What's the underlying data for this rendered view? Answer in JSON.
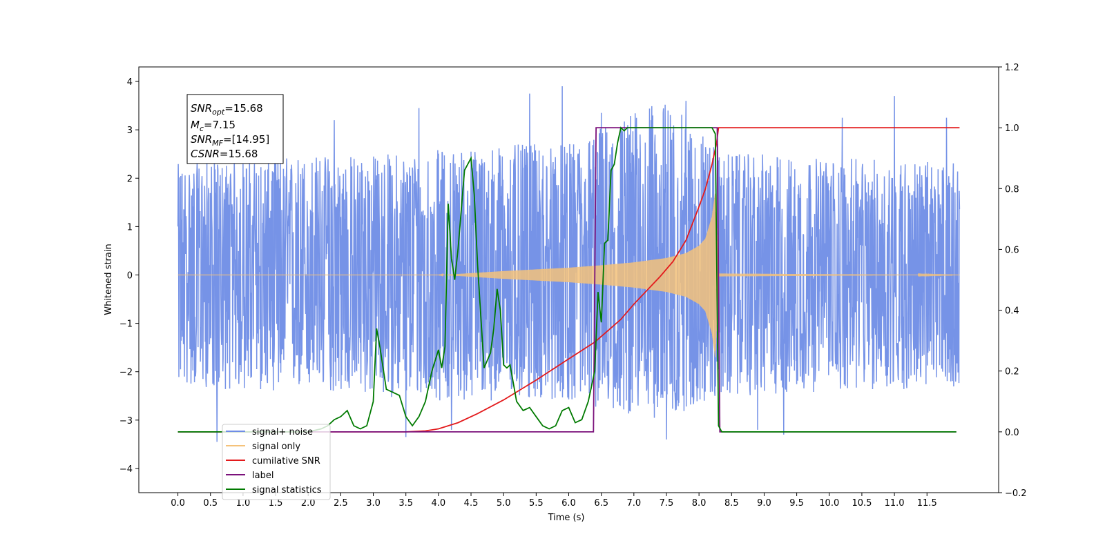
{
  "chart_data": {
    "type": "line",
    "xlabel": "Time (s)",
    "ylabel": "Whitened strain",
    "xlim": [
      -0.6,
      12.6
    ],
    "ylim": [
      -4.5,
      4.3
    ],
    "y2lim": [
      -0.2,
      1.2
    ],
    "x_ticks": [
      0.0,
      0.5,
      1.0,
      1.5,
      2.0,
      2.5,
      3.0,
      3.5,
      4.0,
      4.5,
      5.0,
      5.5,
      6.0,
      6.5,
      7.0,
      7.5,
      8.0,
      8.5,
      9.0,
      9.5,
      10.0,
      10.5,
      11.0,
      11.5
    ],
    "x_tick_labels": [
      "0.0",
      "0.5",
      "1.0",
      "1.5",
      "2.0",
      "2.5",
      "3.0",
      "3.5",
      "4.0",
      "4.5",
      "5.0",
      "5.5",
      "6.0",
      "6.5",
      "7.0",
      "7.5",
      "8.0",
      "8.5",
      "9.0",
      "9.5",
      "10.0",
      "10.5",
      "11.0",
      "11.5"
    ],
    "y_ticks": [
      4,
      3,
      2,
      1,
      0,
      -1,
      -2,
      -3,
      -4
    ],
    "y_tick_labels": [
      "4",
      "3",
      "2",
      "1",
      "0",
      "−1",
      "−2",
      "−3",
      "−4"
    ],
    "y2_ticks": [
      1.2,
      1.0,
      0.8,
      0.6,
      0.4,
      0.2,
      0.0,
      -0.2
    ],
    "y2_tick_labels": [
      "1.2",
      "1.0",
      "0.8",
      "0.6",
      "0.4",
      "0.2",
      "0.0",
      "−0.2"
    ],
    "noise_envelope": {
      "x": [
        0.0,
        1.0,
        2.0,
        3.0,
        4.0,
        5.0,
        6.0,
        6.5,
        7.0,
        7.5,
        8.0,
        8.5,
        9.0,
        10.0,
        11.0,
        12.0
      ],
      "max": [
        2.3,
        2.4,
        2.5,
        2.5,
        2.6,
        2.7,
        2.7,
        3.1,
        3.4,
        3.6,
        3.0,
        2.5,
        2.5,
        2.4,
        2.4,
        2.3
      ],
      "min": [
        -2.3,
        -2.4,
        -2.4,
        -2.5,
        -2.6,
        -2.6,
        -2.6,
        -2.8,
        -2.9,
        -3.0,
        -2.7,
        -2.5,
        -2.5,
        -2.4,
        -2.4,
        -2.3
      ]
    },
    "noise_spikes": [
      {
        "x": 0.6,
        "y": -3.45
      },
      {
        "x": 1.5,
        "y": 3.1
      },
      {
        "x": 2.4,
        "y": 3.2
      },
      {
        "x": 3.5,
        "y": -3.35
      },
      {
        "x": 3.7,
        "y": 3.45
      },
      {
        "x": 4.2,
        "y": -3.2
      },
      {
        "x": 5.4,
        "y": 3.75
      },
      {
        "x": 5.9,
        "y": 3.9
      },
      {
        "x": 6.5,
        "y": 3.35
      },
      {
        "x": 7.5,
        "y": -3.4
      },
      {
        "x": 7.8,
        "y": 3.6
      },
      {
        "x": 8.9,
        "y": -3.2
      },
      {
        "x": 9.3,
        "y": -3.3
      },
      {
        "x": 10.2,
        "y": 3.25
      },
      {
        "x": 11.0,
        "y": 3.7
      },
      {
        "x": 11.8,
        "y": 3.25
      }
    ],
    "signal_envelope": {
      "x": [
        0.0,
        4.0,
        4.3,
        5.0,
        6.0,
        6.5,
        7.0,
        7.5,
        7.8,
        8.0,
        8.1,
        8.2,
        8.25,
        8.3,
        12.0
      ],
      "amplitude": [
        0.0,
        0.0,
        0.02,
        0.08,
        0.15,
        0.2,
        0.26,
        0.35,
        0.45,
        0.6,
        0.75,
        1.2,
        1.7,
        0.03,
        0.0
      ]
    },
    "series": [
      {
        "name": "cumilative SNR",
        "axis": "right",
        "color": "#e31a1c",
        "x": [
          0.0,
          3.5,
          3.8,
          4.0,
          4.3,
          4.6,
          5.0,
          5.5,
          6.0,
          6.4,
          6.8,
          7.0,
          7.4,
          7.6,
          7.8,
          8.0,
          8.1,
          8.2,
          8.27,
          8.3,
          12.0
        ],
        "y": [
          0.0,
          0.0,
          0.003,
          0.01,
          0.03,
          0.06,
          0.105,
          0.17,
          0.24,
          0.295,
          0.37,
          0.42,
          0.51,
          0.56,
          0.63,
          0.74,
          0.8,
          0.88,
          0.95,
          1.0,
          1.0
        ]
      },
      {
        "name": "label",
        "axis": "right",
        "color": "#7b117b",
        "x": [
          0.0,
          6.38,
          6.42,
          8.28,
          8.32,
          11.95
        ],
        "y": [
          0.0,
          0.0,
          1.0,
          1.0,
          0.0,
          0.0
        ]
      },
      {
        "name": "signal statistics",
        "axis": "right",
        "color": "#007a00",
        "x": [
          0.0,
          2.0,
          2.2,
          2.3,
          2.4,
          2.5,
          2.6,
          2.7,
          2.8,
          2.9,
          3.0,
          3.05,
          3.1,
          3.2,
          3.3,
          3.4,
          3.5,
          3.6,
          3.7,
          3.8,
          3.9,
          4.0,
          4.05,
          4.1,
          4.15,
          4.2,
          4.25,
          4.3,
          4.4,
          4.5,
          4.55,
          4.6,
          4.7,
          4.8,
          4.85,
          4.9,
          4.95,
          5.0,
          5.05,
          5.1,
          5.2,
          5.3,
          5.4,
          5.5,
          5.6,
          5.7,
          5.8,
          5.9,
          6.0,
          6.1,
          6.2,
          6.3,
          6.4,
          6.45,
          6.5,
          6.55,
          6.6,
          6.65,
          6.7,
          6.75,
          6.8,
          6.85,
          6.9,
          7.0,
          7.1,
          7.3,
          7.6,
          8.0,
          8.2,
          8.25,
          8.3,
          8.35,
          11.95
        ],
        "y": [
          0.0,
          0.0,
          0.01,
          0.02,
          0.04,
          0.05,
          0.07,
          0.02,
          0.01,
          0.02,
          0.1,
          0.34,
          0.28,
          0.14,
          0.13,
          0.12,
          0.05,
          0.02,
          0.05,
          0.1,
          0.2,
          0.27,
          0.21,
          0.28,
          0.75,
          0.57,
          0.5,
          0.6,
          0.86,
          0.9,
          0.78,
          0.55,
          0.21,
          0.26,
          0.34,
          0.47,
          0.4,
          0.22,
          0.21,
          0.22,
          0.1,
          0.07,
          0.08,
          0.05,
          0.02,
          0.01,
          0.02,
          0.07,
          0.08,
          0.03,
          0.04,
          0.1,
          0.2,
          0.46,
          0.36,
          0.62,
          0.63,
          0.86,
          0.88,
          0.95,
          1.0,
          0.99,
          1.0,
          1.0,
          1.0,
          1.0,
          1.0,
          1.0,
          1.0,
          0.98,
          0.02,
          0.0,
          0.0
        ]
      }
    ],
    "legend": {
      "placement": "lower-left",
      "entries": [
        {
          "label": "signal+ noise",
          "color": "#6f8de6"
        },
        {
          "label": "signal only",
          "color": "#f5c27a"
        },
        {
          "label": "cumilative SNR",
          "color": "#e31a1c"
        },
        {
          "label": "label",
          "color": "#7b117b"
        },
        {
          "label": "signal statistics",
          "color": "#007a00"
        }
      ]
    },
    "annotation": {
      "snr_opt_value": "=15.68",
      "mc_value": "=7.15",
      "snr_mf_value": "=[14.95]",
      "csnr_value": "=15.68",
      "lines": [
        {
          "main": "SNR",
          "sub": "opt",
          "value": "=15.68"
        },
        {
          "main": "M",
          "sub": "c",
          "value": "=7.15"
        },
        {
          "main": "SNR",
          "sub": "MF",
          "value": "=[14.95]"
        },
        {
          "main": "CSNR",
          "sub": "",
          "value": "=15.68"
        }
      ]
    },
    "grid": false
  }
}
